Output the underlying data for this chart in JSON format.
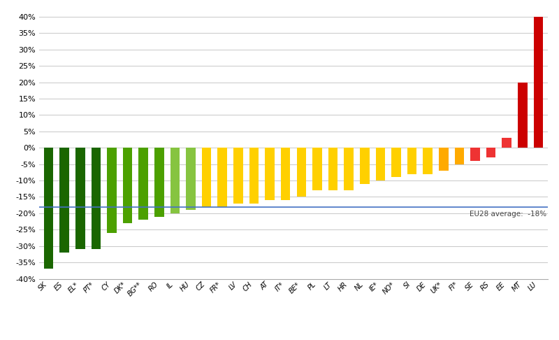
{
  "categories": [
    "SK",
    "ES",
    "EL*",
    "PT*",
    "CY",
    "DK*",
    "BG**",
    "RO",
    "IL",
    "HU",
    "CZ",
    "FR*",
    "LV",
    "CH",
    "AT",
    "IT*",
    "BE*",
    "PL",
    "LT",
    "HR",
    "NL",
    "IE*",
    "NO*",
    "SI",
    "DE",
    "UK*",
    "FI*",
    "SE",
    "RS",
    "EE",
    "MT",
    "LU"
  ],
  "values": [
    -37,
    -32,
    -31,
    -31,
    -26,
    -23,
    -22,
    -21,
    -20,
    -19,
    -18,
    -18,
    -17,
    -17,
    -16,
    -16,
    -15,
    -13,
    -13,
    -13,
    -11,
    -10,
    -9,
    -8,
    -8,
    -7,
    -5,
    -4,
    -3,
    3,
    20,
    40
  ],
  "colors": [
    "#1a6600",
    "#1a6600",
    "#1a6600",
    "#1a6600",
    "#4ca000",
    "#4ca000",
    "#4ca000",
    "#4ca000",
    "#86c440",
    "#86c440",
    "#ffd000",
    "#ffd000",
    "#ffd000",
    "#ffd000",
    "#ffd000",
    "#ffd000",
    "#ffd000",
    "#ffd000",
    "#ffd000",
    "#ffd000",
    "#ffd000",
    "#ffd000",
    "#ffd000",
    "#ffd000",
    "#ffd000",
    "#ffaa00",
    "#ffaa00",
    "#ee3333",
    "#ee3333",
    "#ee3333",
    "#cc0000",
    "#cc0000"
  ],
  "eu_avg": -18,
  "eu_avg_label": "EU28 average:  -18%",
  "ylim": [
    -40,
    42
  ],
  "yticks": [
    -40,
    -35,
    -30,
    -25,
    -20,
    -15,
    -10,
    -5,
    0,
    5,
    10,
    15,
    20,
    25,
    30,
    35,
    40
  ],
  "ytick_labels": [
    "-40%",
    "-35%",
    "-30%",
    "-25%",
    "-20%",
    "-15%",
    "-10%",
    "-5%",
    "0%",
    "5%",
    "10%",
    "15%",
    "20%",
    "25%",
    "30%",
    "35%",
    "40%"
  ],
  "avg_line_color": "#4472c4",
  "background_color": "#ffffff",
  "grid_color": "#c8c8c8",
  "bar_width": 0.6,
  "figsize": [
    8.0,
    4.86
  ],
  "dpi": 100
}
